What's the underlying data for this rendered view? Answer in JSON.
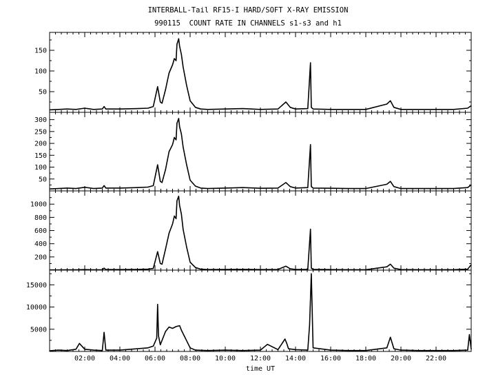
{
  "title": "INTERBALL-Tail RF15-I HARD/SOFT X-RAY EMISSION",
  "subtitle": "990115  COUNT RATE IN CHANNELS s1-s3 and h1",
  "xlabel": "time UT",
  "colors": {
    "trace": "#000000",
    "background": "#ffffff",
    "axes": "#000000"
  },
  "chart_data": [
    {
      "type": "line",
      "name": "panel-1",
      "xlim": [
        0,
        24
      ],
      "ylim": [
        0,
        190
      ],
      "yticks": [
        50,
        100,
        150
      ],
      "xticks": [
        "02:00",
        "04:00",
        "06:00",
        "08:00",
        "10:00",
        "12:00",
        "14:00",
        "16:00",
        "18:00",
        "20:00",
        "22:00"
      ],
      "xtick_hours": [
        2,
        4,
        6,
        8,
        10,
        12,
        14,
        16,
        18,
        20,
        22
      ],
      "series": [
        {
          "x": [
            0,
            0.5,
            1.0,
            1.5,
            2.0,
            2.5,
            3.0,
            3.1,
            3.2,
            4.0,
            5.0,
            5.6,
            5.9,
            6.15,
            6.3,
            6.4,
            6.6,
            6.8,
            7.0,
            7.1,
            7.2,
            7.25,
            7.35,
            7.4,
            7.5,
            7.6,
            7.8,
            8.0,
            8.3,
            8.6,
            9.0,
            10.0,
            11.0,
            12.0,
            13.0,
            13.45,
            13.7,
            14.0,
            14.7,
            14.85,
            14.9,
            15.0,
            16.0,
            17.0,
            18.0,
            19.2,
            19.4,
            19.6,
            20.0,
            21.0,
            22.0,
            23.0,
            23.8,
            24.0
          ],
          "y": [
            6,
            7,
            8,
            7,
            10,
            7,
            8,
            14,
            8,
            8,
            9,
            10,
            14,
            62,
            25,
            22,
            55,
            95,
            115,
            130,
            125,
            165,
            178,
            160,
            140,
            110,
            65,
            28,
            12,
            8,
            7,
            8,
            9,
            7,
            8,
            25,
            12,
            8,
            9,
            120,
            12,
            8,
            7,
            7,
            7,
            20,
            28,
            12,
            7,
            7,
            7,
            7,
            10,
            16
          ]
        }
      ]
    },
    {
      "type": "line",
      "name": "panel-2",
      "xlim": [
        0,
        24
      ],
      "ylim": [
        0,
        325
      ],
      "yticks": [
        50,
        100,
        150,
        200,
        250,
        300
      ],
      "series": [
        {
          "x": [
            0,
            0.5,
            1.0,
            1.5,
            2.0,
            2.5,
            3.0,
            3.1,
            3.2,
            4.0,
            5.0,
            5.6,
            5.9,
            6.15,
            6.3,
            6.4,
            6.6,
            6.8,
            7.0,
            7.1,
            7.2,
            7.25,
            7.35,
            7.4,
            7.5,
            7.6,
            7.8,
            8.0,
            8.3,
            8.6,
            9.0,
            10.0,
            11.0,
            12.0,
            13.0,
            13.45,
            13.7,
            14.0,
            14.7,
            14.85,
            14.9,
            15.0,
            16.0,
            17.0,
            18.0,
            19.2,
            19.4,
            19.6,
            20.0,
            21.0,
            22.0,
            23.0,
            23.8,
            24.0
          ],
          "y": [
            8,
            10,
            12,
            10,
            15,
            10,
            12,
            22,
            12,
            12,
            14,
            16,
            22,
            110,
            40,
            35,
            90,
            165,
            195,
            225,
            215,
            285,
            305,
            270,
            240,
            185,
            110,
            45,
            20,
            12,
            10,
            12,
            14,
            11,
            12,
            35,
            18,
            12,
            14,
            195,
            18,
            12,
            11,
            10,
            10,
            28,
            40,
            18,
            10,
            10,
            10,
            10,
            14,
            25
          ]
        }
      ]
    },
    {
      "type": "line",
      "name": "panel-3",
      "xlim": [
        0,
        24
      ],
      "ylim": [
        0,
        1180
      ],
      "yticks": [
        200,
        400,
        600,
        800,
        1000
      ],
      "series": [
        {
          "x": [
            0,
            0.5,
            1.0,
            1.5,
            2.0,
            2.5,
            3.0,
            3.1,
            3.2,
            4.0,
            5.0,
            5.6,
            5.9,
            6.15,
            6.3,
            6.4,
            6.6,
            6.8,
            7.0,
            7.1,
            7.2,
            7.25,
            7.35,
            7.4,
            7.5,
            7.6,
            7.8,
            8.0,
            8.3,
            8.6,
            9.0,
            10.0,
            11.0,
            12.0,
            13.0,
            13.45,
            13.7,
            14.0,
            14.7,
            14.85,
            14.9,
            15.0,
            16.0,
            17.0,
            18.0,
            19.2,
            19.4,
            19.6,
            20.0,
            21.0,
            22.0,
            23.0,
            23.8,
            24.0
          ],
          "y": [
            3,
            3,
            5,
            4,
            8,
            5,
            6,
            30,
            8,
            8,
            10,
            15,
            25,
            280,
            100,
            90,
            320,
            560,
            700,
            820,
            780,
            1050,
            1120,
            980,
            850,
            620,
            350,
            120,
            40,
            15,
            8,
            10,
            12,
            8,
            10,
            60,
            20,
            10,
            12,
            620,
            30,
            12,
            8,
            6,
            6,
            50,
            90,
            30,
            8,
            6,
            6,
            6,
            15,
            80
          ]
        }
      ]
    },
    {
      "type": "line",
      "name": "panel-4",
      "xlim": [
        0,
        24
      ],
      "ylim": [
        0,
        18000
      ],
      "yticks": [
        5000,
        10000,
        15000
      ],
      "series": [
        {
          "x": [
            0,
            0.5,
            1.0,
            1.5,
            1.7,
            2.0,
            2.5,
            3.0,
            3.1,
            3.2,
            4.0,
            5.0,
            5.6,
            5.9,
            6.1,
            6.15,
            6.2,
            6.3,
            6.6,
            6.8,
            7.0,
            7.2,
            7.4,
            7.5,
            7.7,
            8.0,
            8.3,
            9.0,
            10.0,
            11.0,
            12.0,
            12.4,
            13.0,
            13.4,
            13.5,
            13.6,
            14.0,
            14.7,
            14.8,
            14.9,
            15.0,
            16.0,
            17.0,
            18.0,
            19.2,
            19.4,
            19.6,
            20.0,
            21.0,
            22.0,
            23.0,
            23.8,
            23.9,
            24.0
          ],
          "y": [
            150,
            300,
            200,
            500,
            1800,
            500,
            300,
            200,
            4300,
            300,
            300,
            600,
            800,
            1200,
            3000,
            10600,
            3500,
            1500,
            4500,
            5500,
            5200,
            5600,
            5800,
            4800,
            3200,
            800,
            300,
            200,
            300,
            200,
            300,
            1600,
            400,
            2800,
            1800,
            600,
            400,
            300,
            6000,
            17500,
            800,
            300,
            200,
            200,
            800,
            3200,
            600,
            300,
            200,
            200,
            200,
            300,
            3800,
            500
          ]
        }
      ]
    }
  ]
}
